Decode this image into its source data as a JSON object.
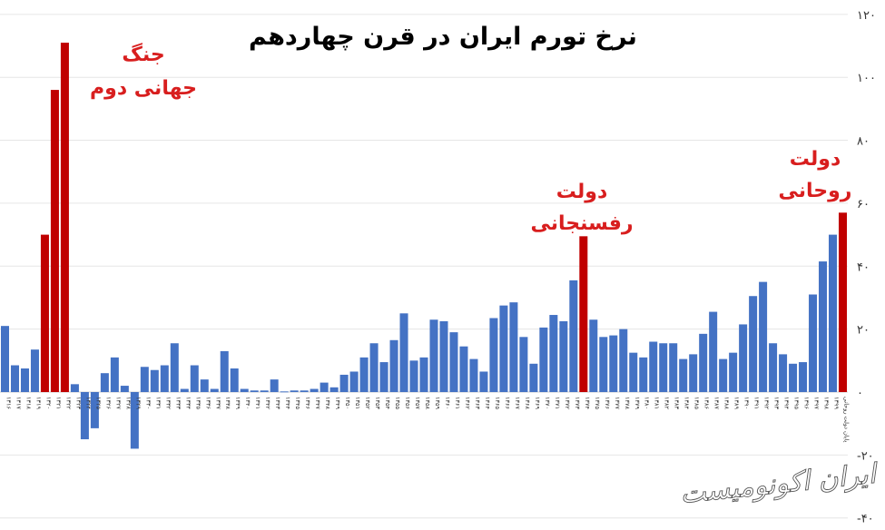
{
  "chart_data": {
    "type": "bar",
    "title": "نرخ تورم ایران در قرن چهاردهم",
    "ylim": [
      -45,
      120
    ],
    "y_ticks": [
      {
        "value": 120,
        "label": "۱۲۰"
      },
      {
        "value": 100,
        "label": "۱۰۰"
      },
      {
        "value": 80,
        "label": "۸۰"
      },
      {
        "value": 60,
        "label": "۶۰"
      },
      {
        "value": 40,
        "label": "۴۰"
      },
      {
        "value": 20,
        "label": "۲۰"
      },
      {
        "value": 0,
        "label": "۰"
      },
      {
        "value": -20,
        "label": "-۲۰"
      },
      {
        "value": -40,
        "label": "-۴۰"
      }
    ],
    "grid": true,
    "colors": {
      "normal": "#4472c4",
      "highlight": "#c00000",
      "annotation": "#d81e1e"
    },
    "categories": [
      "۱۳۱۶",
      "۱۳۱۷",
      "۱۳۱۸",
      "۱۳۱۹",
      "۱۳۲۰",
      "۱۳۲۱",
      "۱۳۲۲",
      "۱۳۲۳",
      "۱۳۲۴",
      "۱۳۲۵",
      "۱۳۲۶",
      "۱۳۲۷",
      "۱۳۲۸",
      "۱۳۲۹",
      "۱۳۳۰",
      "۱۳۳۱",
      "۱۳۳۲",
      "۱۳۳۳",
      "۱۳۳۴",
      "۱۳۳۵",
      "۱۳۳۶",
      "۱۳۳۷",
      "۱۳۳۸",
      "۱۳۳۹",
      "۱۳۴۰",
      "۱۳۴۱",
      "۱۳۴۲",
      "۱۳۴۳",
      "۱۳۴۴",
      "۱۳۴۵",
      "۱۳۴۶",
      "۱۳۴۷",
      "۱۳۴۸",
      "۱۳۴۹",
      "۱۳۵۰",
      "۱۳۵۱",
      "۱۳۵۲",
      "۱۳۵۳",
      "۱۳۵۴",
      "۱۳۵۵",
      "۱۳۵۶",
      "۱۳۵۷",
      "۱۳۵۸",
      "۱۳۵۹",
      "۱۳۶۰",
      "۱۳۶۱",
      "۱۳۶۲",
      "۱۳۶۳",
      "۱۳۶۴",
      "۱۳۶۵",
      "۱۳۶۶",
      "۱۳۶۷",
      "۱۳۶۸",
      "۱۳۶۹",
      "۱۳۷۰",
      "۱۳۷۱",
      "۱۳۷۲",
      "۱۳۷۳",
      "۱۳۷۴",
      "۱۳۷۵",
      "۱۳۷۶",
      "۱۳۷۷",
      "۱۳۷۸",
      "۱۳۷۹",
      "۱۳۸۰",
      "۱۳۸۱",
      "۱۳۸۲",
      "۱۳۸۳",
      "۱۳۸۴",
      "۱۳۸۵",
      "۱۳۸۶",
      "۱۳۸۷",
      "۱۳۸۸",
      "۱۳۸۹",
      "۱۳۹۰",
      "۱۳۹۱",
      "۱۳۹۲",
      "۱۳۹۳",
      "۱۳۹۴",
      "۱۳۹۵",
      "۱۳۹۶",
      "۱۳۹۷",
      "۱۳۹۸",
      "۱۳۹۹",
      "پایان دولت روحانی"
    ],
    "values": [
      21,
      8.5,
      7.5,
      13.5,
      50,
      96,
      111,
      2.5,
      -15,
      -11.5,
      6,
      11,
      2,
      -18,
      8,
      7,
      8.5,
      15.5,
      1,
      8.5,
      4,
      1,
      13,
      7.5,
      1,
      0.5,
      0.5,
      4,
      0.2,
      0.5,
      0.5,
      1,
      3,
      1.5,
      5.5,
      6.5,
      11,
      15.5,
      9.5,
      16.5,
      25,
      10,
      11,
      23,
      22.5,
      19,
      14.5,
      10.5,
      6.5,
      23.5,
      27.5,
      28.5,
      17.5,
      9,
      20.5,
      24.5,
      22.5,
      35.5,
      49.5,
      23,
      17.5,
      18,
      20,
      12.5,
      11,
      16,
      15.5,
      15.5,
      10.5,
      12,
      18.5,
      25.5,
      10.5,
      12.5,
      21.5,
      30.5,
      35,
      15.5,
      12,
      9,
      9.5,
      31,
      41.5,
      50,
      57
    ],
    "highlight_indices": [
      4,
      5,
      6,
      58,
      84
    ],
    "annotations": [
      {
        "lines": [
          "جنگ",
          "جهانی دوم"
        ]
      },
      {
        "lines": [
          "دولت",
          "رفسنجانی"
        ]
      },
      {
        "lines": [
          "دولت",
          "روحانی"
        ]
      }
    ]
  },
  "watermark": "ایران اکونومیست"
}
